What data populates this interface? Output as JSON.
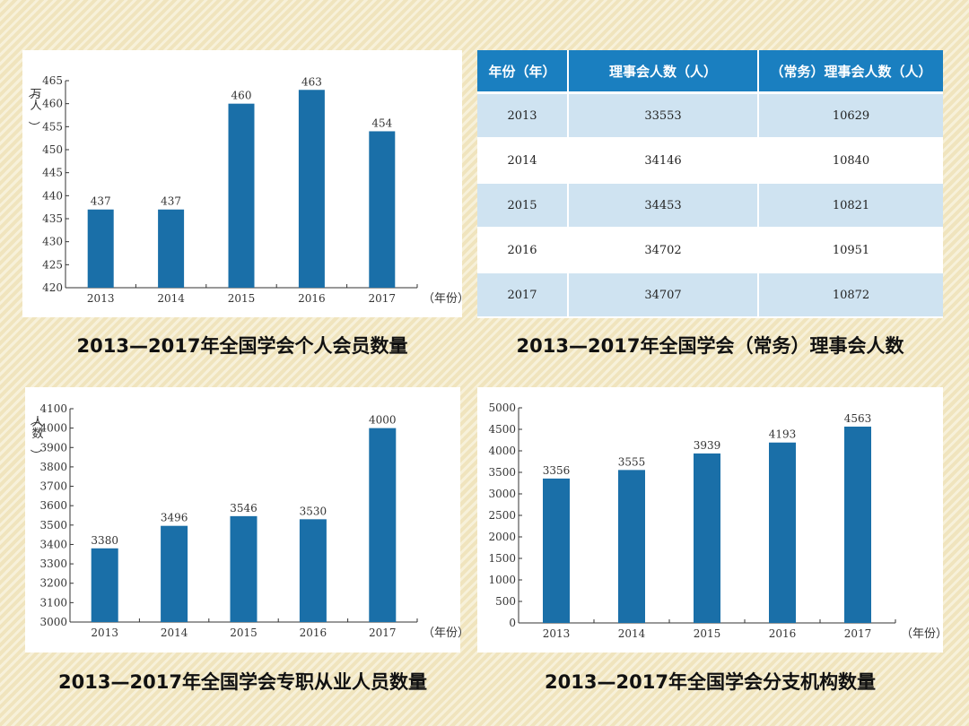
{
  "captions": {
    "c1": "2013—2017年全国学会个人会员数量",
    "c2": "2013—2017年全国学会（常务）理事会人数",
    "c3": "2013—2017年全国学会专职从业人员数量",
    "c4": "2013—2017年全国学会分支机构数量"
  },
  "table": {
    "headers": [
      "年份（年）",
      "理事会人数（人）",
      "（常务）理事会人数（人）"
    ],
    "rows": [
      [
        "2013",
        "33553",
        "10629"
      ],
      [
        "2014",
        "34146",
        "10840"
      ],
      [
        "2015",
        "34453",
        "10821"
      ],
      [
        "2016",
        "34702",
        "10951"
      ],
      [
        "2017",
        "34707",
        "10872"
      ]
    ]
  },
  "chart_data": [
    {
      "type": "bar",
      "categories": [
        "2013",
        "2014",
        "2015",
        "2016",
        "2017"
      ],
      "values": [
        437,
        437,
        460,
        463,
        454
      ],
      "ylim": [
        420,
        465
      ],
      "yticks": [
        420,
        425,
        430,
        435,
        440,
        445,
        450,
        455,
        460,
        465
      ],
      "ylabel": "（万人）",
      "xlabel": "（年份）",
      "bar_color": "#1a6fa8"
    },
    {
      "type": "table",
      "columns": [
        "年份（年）",
        "理事会人数（人）",
        "（常务）理事会人数（人）"
      ],
      "rows": [
        [
          2013,
          33553,
          10629
        ],
        [
          2014,
          34146,
          10840
        ],
        [
          2015,
          34453,
          10821
        ],
        [
          2016,
          34702,
          10951
        ],
        [
          2017,
          34707,
          10872
        ]
      ]
    },
    {
      "type": "bar",
      "categories": [
        "2013",
        "2014",
        "2015",
        "2016",
        "2017"
      ],
      "values": [
        3380,
        3496,
        3546,
        3530,
        4000
      ],
      "ylim": [
        3000,
        4100
      ],
      "yticks": [
        3000,
        3100,
        3200,
        3300,
        3400,
        3500,
        3600,
        3700,
        3800,
        3900,
        4000,
        4100
      ],
      "ylabel": "（人数）",
      "xlabel": "（年份）",
      "bar_color": "#1a6fa8"
    },
    {
      "type": "bar",
      "categories": [
        "2013",
        "2014",
        "2015",
        "2016",
        "2017"
      ],
      "values": [
        3356,
        3555,
        3939,
        4193,
        4563
      ],
      "ylim": [
        0,
        5000
      ],
      "yticks": [
        0,
        500,
        1000,
        1500,
        2000,
        2500,
        3000,
        3500,
        4000,
        4500,
        5000
      ],
      "ylabel": "",
      "xlabel": "（年份）",
      "bar_color": "#1a6fa8"
    }
  ]
}
